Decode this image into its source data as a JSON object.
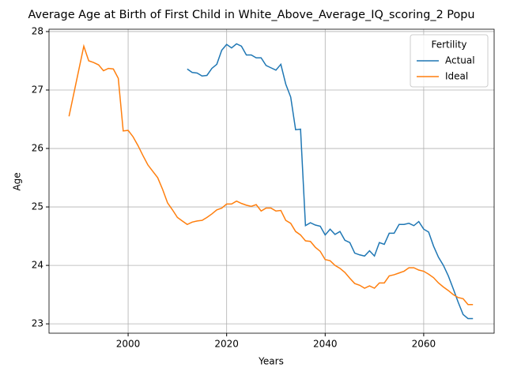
{
  "chart_data": {
    "type": "line",
    "title": "Average Age at Birth of First Child in White_Above_Average_IQ_scoring_2 Popu",
    "x_label": "Years",
    "y_label": "Age",
    "x": [
      1988,
      1989,
      1990,
      1991,
      1992,
      1993,
      1994,
      1995,
      1996,
      1997,
      1998,
      1999,
      2000,
      2001,
      2002,
      2003,
      2004,
      2005,
      2006,
      2007,
      2008,
      2009,
      2010,
      2011,
      2012,
      2013,
      2014,
      2015,
      2016,
      2017,
      2018,
      2019,
      2020,
      2021,
      2022,
      2023,
      2024,
      2025,
      2026,
      2027,
      2028,
      2029,
      2030,
      2031,
      2032,
      2033,
      2034,
      2035,
      2036,
      2037,
      2038,
      2039,
      2040,
      2041,
      2042,
      2043,
      2044,
      2045,
      2046,
      2047,
      2048,
      2049,
      2050,
      2051,
      2052,
      2053,
      2054,
      2055,
      2056,
      2057,
      2058,
      2059,
      2060,
      2061,
      2062,
      2063,
      2064,
      2065,
      2066,
      2067,
      2068,
      2069,
      2070
    ],
    "series": [
      {
        "name": "Actual",
        "color": "#1f77b4",
        "values": [
          null,
          null,
          null,
          null,
          null,
          null,
          null,
          null,
          null,
          null,
          null,
          null,
          null,
          null,
          null,
          null,
          null,
          null,
          null,
          null,
          null,
          null,
          null,
          null,
          27.36,
          27.3,
          27.29,
          27.24,
          27.25,
          27.37,
          27.44,
          27.68,
          27.78,
          27.72,
          27.79,
          27.75,
          27.6,
          27.6,
          27.55,
          27.55,
          27.42,
          27.38,
          27.34,
          27.44,
          27.1,
          26.88,
          26.32,
          26.33,
          24.68,
          24.73,
          24.69,
          24.67,
          24.52,
          24.62,
          24.53,
          24.58,
          24.43,
          24.39,
          24.21,
          24.18,
          24.16,
          24.25,
          24.16,
          24.39,
          24.36,
          24.55,
          24.55,
          24.7,
          24.7,
          24.72,
          24.68,
          24.75,
          24.62,
          24.57,
          24.33,
          24.14,
          24.0,
          23.82,
          23.6,
          23.37,
          23.16,
          23.09,
          23.09
        ]
      },
      {
        "name": "Ideal",
        "color": "#ff7f0e",
        "values": [
          26.55,
          26.95,
          27.35,
          27.75,
          27.5,
          27.47,
          27.43,
          27.33,
          27.37,
          27.36,
          27.2,
          26.3,
          26.31,
          26.2,
          26.05,
          25.88,
          25.72,
          25.61,
          25.5,
          25.3,
          25.07,
          24.95,
          24.82,
          24.76,
          24.7,
          24.74,
          24.76,
          24.77,
          24.82,
          24.88,
          24.95,
          24.98,
          25.05,
          25.05,
          25.1,
          25.06,
          25.03,
          25.01,
          25.04,
          24.93,
          24.98,
          24.98,
          24.93,
          24.94,
          24.77,
          24.72,
          24.58,
          24.52,
          24.42,
          24.41,
          24.31,
          24.24,
          24.1,
          24.08,
          24.0,
          23.95,
          23.88,
          23.78,
          23.69,
          23.66,
          23.61,
          23.65,
          23.61,
          23.7,
          23.7,
          23.82,
          23.84,
          23.87,
          23.9,
          23.96,
          23.96,
          23.92,
          23.9,
          23.85,
          23.79,
          23.7,
          23.63,
          23.57,
          23.5,
          23.45,
          23.43,
          23.33,
          23.33
        ]
      }
    ],
    "xlim": [
      1983.94,
      2074.3
    ],
    "ylim": [
      22.84,
      28.04
    ],
    "xticks": [
      2000,
      2020,
      2040,
      2060
    ],
    "yticks": [
      23,
      24,
      25,
      26,
      27,
      28
    ],
    "grid": true,
    "legend_title": "Fertility",
    "legend_loc": "upper right"
  }
}
